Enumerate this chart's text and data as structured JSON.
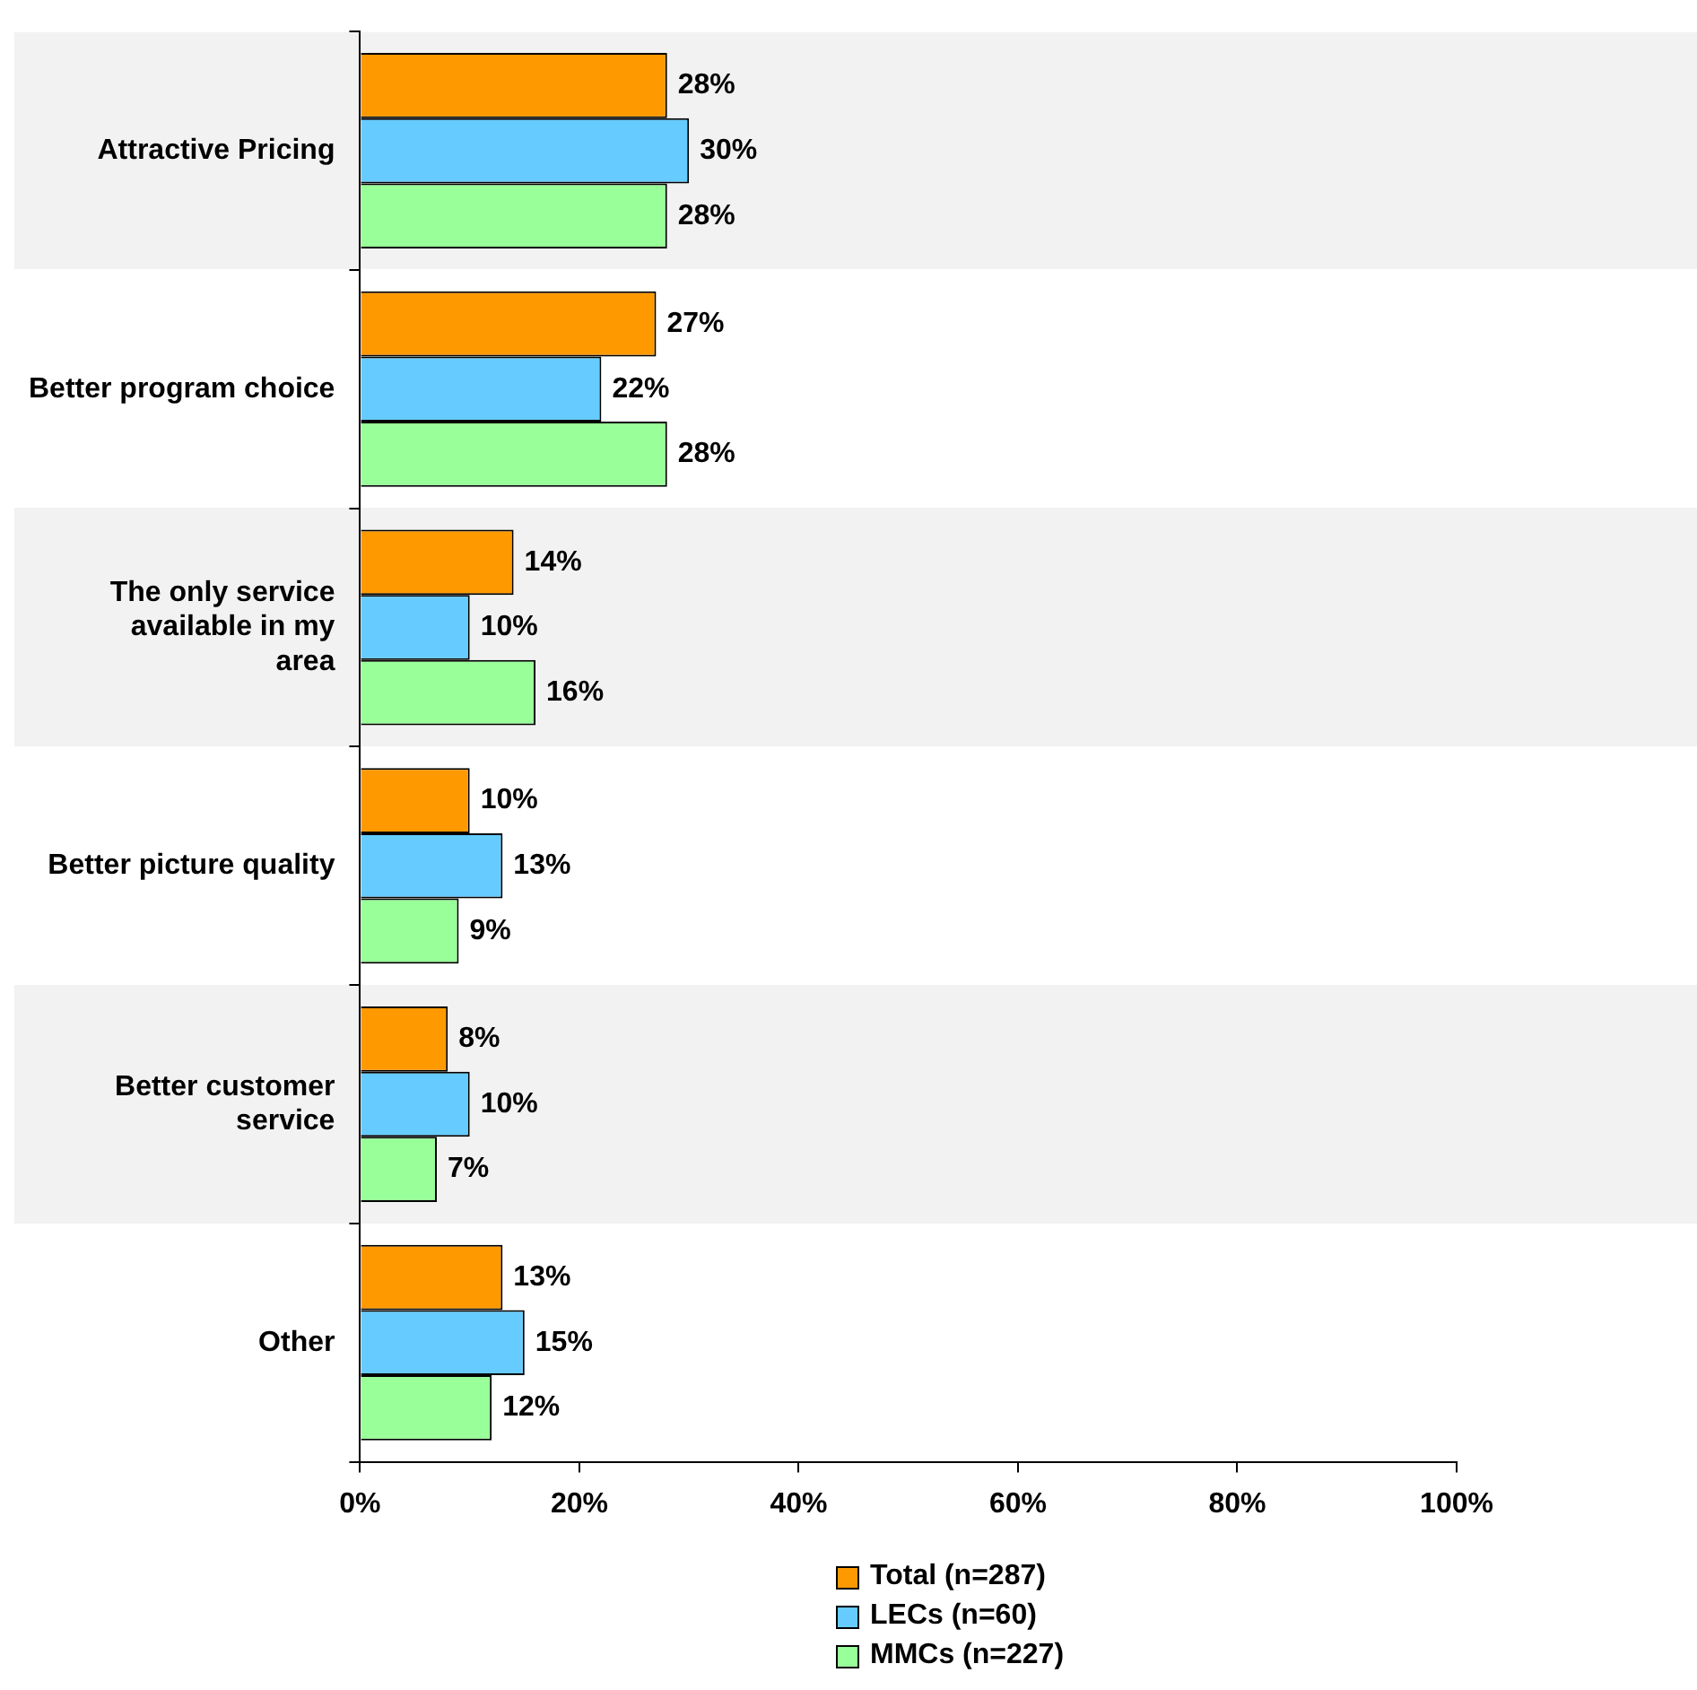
{
  "chart_data": {
    "type": "bar",
    "orientation": "horizontal",
    "categories": [
      "Attractive Pricing",
      "Better program choice",
      "The only service available in my area",
      "Better picture quality",
      "Better customer service",
      "Other"
    ],
    "series": [
      {
        "name": "Total (n=287)",
        "color": "#ff9900",
        "values": [
          28,
          27,
          14,
          10,
          8,
          13
        ],
        "value_labels": [
          "28%",
          "27%",
          "14%",
          "10%",
          "8%",
          "13%"
        ]
      },
      {
        "name": "LECs (n=60)",
        "color": "#66ccff",
        "values": [
          30,
          22,
          10,
          13,
          10,
          15
        ],
        "value_labels": [
          "30%",
          "22%",
          "10%",
          "13%",
          "10%",
          "15%"
        ]
      },
      {
        "name": "MMCs (n=227)",
        "color": "#99ff99",
        "values": [
          28,
          28,
          16,
          9,
          7,
          12
        ],
        "value_labels": [
          "28%",
          "28%",
          "16%",
          "9%",
          "7%",
          "12%"
        ]
      }
    ],
    "xlim": [
      0,
      100
    ],
    "xticks": [
      {
        "value": 0,
        "label": "0%"
      },
      {
        "value": 20,
        "label": "20%"
      },
      {
        "value": 40,
        "label": "40%"
      },
      {
        "value": 60,
        "label": "60%"
      },
      {
        "value": 80,
        "label": "80%"
      },
      {
        "value": 100,
        "label": "100%"
      }
    ],
    "grid": false,
    "legend": "bottom"
  }
}
